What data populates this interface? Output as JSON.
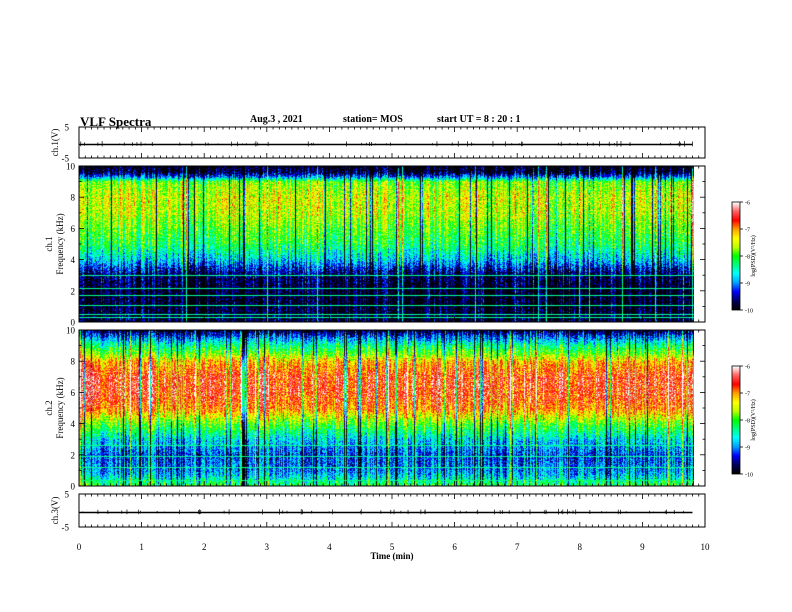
{
  "header": {
    "title": "VLF Spectra",
    "date": "Aug.3  , 2021",
    "station": "station= MOS",
    "start": "start  UT  =   8  : 20 : 1"
  },
  "chart_data": [
    {
      "type": "line",
      "panel": "ch1-waveform",
      "ylabel": "ch.1(V)",
      "ylim": [
        -5,
        5
      ],
      "yticks": [
        "5",
        "-5"
      ],
      "xlim": [
        0,
        10
      ],
      "series": [
        {
          "x": [
            0,
            9.8
          ],
          "values": [
            0,
            0
          ]
        }
      ]
    },
    {
      "type": "heatmap",
      "panel": "ch1-spectrogram",
      "ylabel_top": "ch.1",
      "ylabel": "Frequency  (kHz)",
      "ylim": [
        0,
        10
      ],
      "yticks": [
        "0",
        "2",
        "4",
        "6",
        "8",
        "10"
      ],
      "xlim": [
        0,
        9.83
      ],
      "colorbar": {
        "label": "log(PSD)(V²/Hz)",
        "ticks": [
          "-6",
          "-7",
          "-8",
          "-9",
          "-10"
        ],
        "range": [
          -10,
          -6
        ]
      },
      "profile": {
        "freq_khz": [
          0,
          1,
          2,
          3,
          3.5,
          4,
          5,
          6,
          7,
          8,
          9,
          9.3,
          9.6,
          10
        ],
        "log_psd": [
          -9.8,
          -9.9,
          -9.9,
          -9.7,
          -9.3,
          -8.8,
          -8.2,
          -7.9,
          -7.6,
          -7.5,
          -7.8,
          -9.0,
          -9.8,
          -10
        ]
      },
      "tones_khz": [
        0.3,
        0.5,
        1.1,
        1.7,
        2.2,
        3.0
      ]
    },
    {
      "type": "heatmap",
      "panel": "ch2-spectrogram",
      "ylabel_top": "ch.2",
      "ylabel": "Frequency  (kHz)",
      "ylim": [
        0,
        10
      ],
      "yticks": [
        "0",
        "2",
        "4",
        "6",
        "8",
        "10"
      ],
      "xlim": [
        0,
        9.83
      ],
      "colorbar": {
        "label": "log(PSD)(V²/Hz)",
        "ticks": [
          "-6",
          "-7",
          "-8",
          "-9",
          "-10"
        ],
        "range": [
          -10,
          -6
        ]
      },
      "profile": {
        "freq_khz": [
          0,
          0.5,
          1,
          2,
          3,
          4,
          5,
          6,
          7,
          8,
          8.5,
          9,
          9.5,
          10
        ],
        "log_psd": [
          -8.0,
          -8.6,
          -9.0,
          -9.2,
          -8.7,
          -7.9,
          -6.9,
          -6.6,
          -6.6,
          -7.1,
          -7.8,
          -8.3,
          -9.0,
          -9.8
        ]
      },
      "tones_khz": [
        0.4,
        1.2,
        1.9,
        2.6
      ]
    },
    {
      "type": "line",
      "panel": "ch3-waveform",
      "ylabel": "ch.3(V)",
      "ylim": [
        -5,
        5
      ],
      "yticks": [
        "5",
        "-5"
      ],
      "xlim": [
        0,
        10
      ],
      "xlabel": "Time  (min)",
      "xticks": [
        "0",
        "1",
        "2",
        "3",
        "4",
        "5",
        "6",
        "7",
        "8",
        "9",
        "10"
      ],
      "series": [
        {
          "x": [
            0,
            9.8
          ],
          "values": [
            0,
            0
          ]
        }
      ]
    }
  ],
  "colors": {
    "colormap": [
      "#000000",
      "#000060",
      "#0000ff",
      "#00a0ff",
      "#00ffff",
      "#00ff80",
      "#00ff00",
      "#c0ff00",
      "#ffff00",
      "#ffa000",
      "#ff0000",
      "#ff6060",
      "#ffffff"
    ]
  }
}
